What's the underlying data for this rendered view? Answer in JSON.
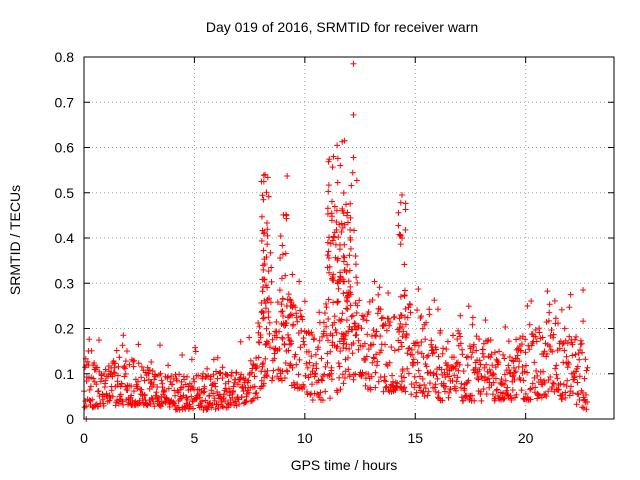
{
  "chart_data": {
    "type": "scatter",
    "title": "Day 019 of 2016, SRMTID for receiver warn",
    "xlabel": "GPS time / hours",
    "ylabel": "SRMTID / TECUs",
    "xlim": [
      0,
      24
    ],
    "ylim": [
      0,
      0.8
    ],
    "x_ticks": [
      0,
      5,
      10,
      15,
      20
    ],
    "y_ticks": [
      0,
      0.1,
      0.2,
      0.3,
      0.4,
      0.5,
      0.6,
      0.7,
      0.8
    ],
    "x_tick_labels": [
      "0",
      "5",
      "10",
      "15",
      "20"
    ],
    "y_tick_labels": [
      "0",
      "0.1",
      "0.2",
      "0.3",
      "0.4",
      "0.5",
      "0.6",
      "0.7",
      "0.8"
    ],
    "grid": true,
    "marker": "+",
    "color": "#ff0000",
    "data_range_hours": [
      0,
      22.8
    ],
    "notable_points": [
      {
        "x": 12.2,
        "y": 0.785
      },
      {
        "x": 12.2,
        "y": 0.672
      },
      {
        "x": 11.8,
        "y": 0.615
      },
      {
        "x": 12.2,
        "y": 0.578
      },
      {
        "x": 11.3,
        "y": 0.58
      },
      {
        "x": 9.2,
        "y": 0.537
      },
      {
        "x": 8.2,
        "y": 0.54
      },
      {
        "x": 14.4,
        "y": 0.495
      },
      {
        "x": 14.4,
        "y": 0.4
      },
      {
        "x": 0.1,
        "y": 0.0
      },
      {
        "x": 22.6,
        "y": 0.285
      }
    ],
    "envelope": [
      {
        "x": 0.0,
        "lo": 0.02,
        "hi": 0.13
      },
      {
        "x": 1.0,
        "lo": 0.03,
        "hi": 0.12
      },
      {
        "x": 2.0,
        "lo": 0.03,
        "hi": 0.14
      },
      {
        "x": 3.0,
        "lo": 0.03,
        "hi": 0.11
      },
      {
        "x": 4.0,
        "lo": 0.02,
        "hi": 0.1
      },
      {
        "x": 5.0,
        "lo": 0.02,
        "hi": 0.1
      },
      {
        "x": 6.0,
        "lo": 0.02,
        "hi": 0.12
      },
      {
        "x": 7.0,
        "lo": 0.03,
        "hi": 0.11
      },
      {
        "x": 7.8,
        "lo": 0.04,
        "hi": 0.14
      },
      {
        "x": 8.2,
        "lo": 0.08,
        "hi": 0.35
      },
      {
        "x": 9.0,
        "lo": 0.08,
        "hi": 0.32
      },
      {
        "x": 10.0,
        "lo": 0.06,
        "hi": 0.22
      },
      {
        "x": 10.6,
        "lo": 0.03,
        "hi": 0.18
      },
      {
        "x": 11.0,
        "lo": 0.04,
        "hi": 0.35
      },
      {
        "x": 11.5,
        "lo": 0.06,
        "hi": 0.45
      },
      {
        "x": 12.0,
        "lo": 0.08,
        "hi": 0.38
      },
      {
        "x": 12.5,
        "lo": 0.08,
        "hi": 0.28
      },
      {
        "x": 13.0,
        "lo": 0.06,
        "hi": 0.26
      },
      {
        "x": 14.0,
        "lo": 0.06,
        "hi": 0.22
      },
      {
        "x": 14.5,
        "lo": 0.06,
        "hi": 0.3
      },
      {
        "x": 15.0,
        "lo": 0.05,
        "hi": 0.25
      },
      {
        "x": 16.0,
        "lo": 0.04,
        "hi": 0.2
      },
      {
        "x": 17.0,
        "lo": 0.04,
        "hi": 0.2
      },
      {
        "x": 18.0,
        "lo": 0.04,
        "hi": 0.18
      },
      {
        "x": 19.0,
        "lo": 0.04,
        "hi": 0.17
      },
      {
        "x": 20.0,
        "lo": 0.04,
        "hi": 0.2
      },
      {
        "x": 21.0,
        "lo": 0.05,
        "hi": 0.24
      },
      {
        "x": 22.0,
        "lo": 0.04,
        "hi": 0.22
      },
      {
        "x": 22.8,
        "lo": 0.02,
        "hi": 0.15
      }
    ]
  }
}
